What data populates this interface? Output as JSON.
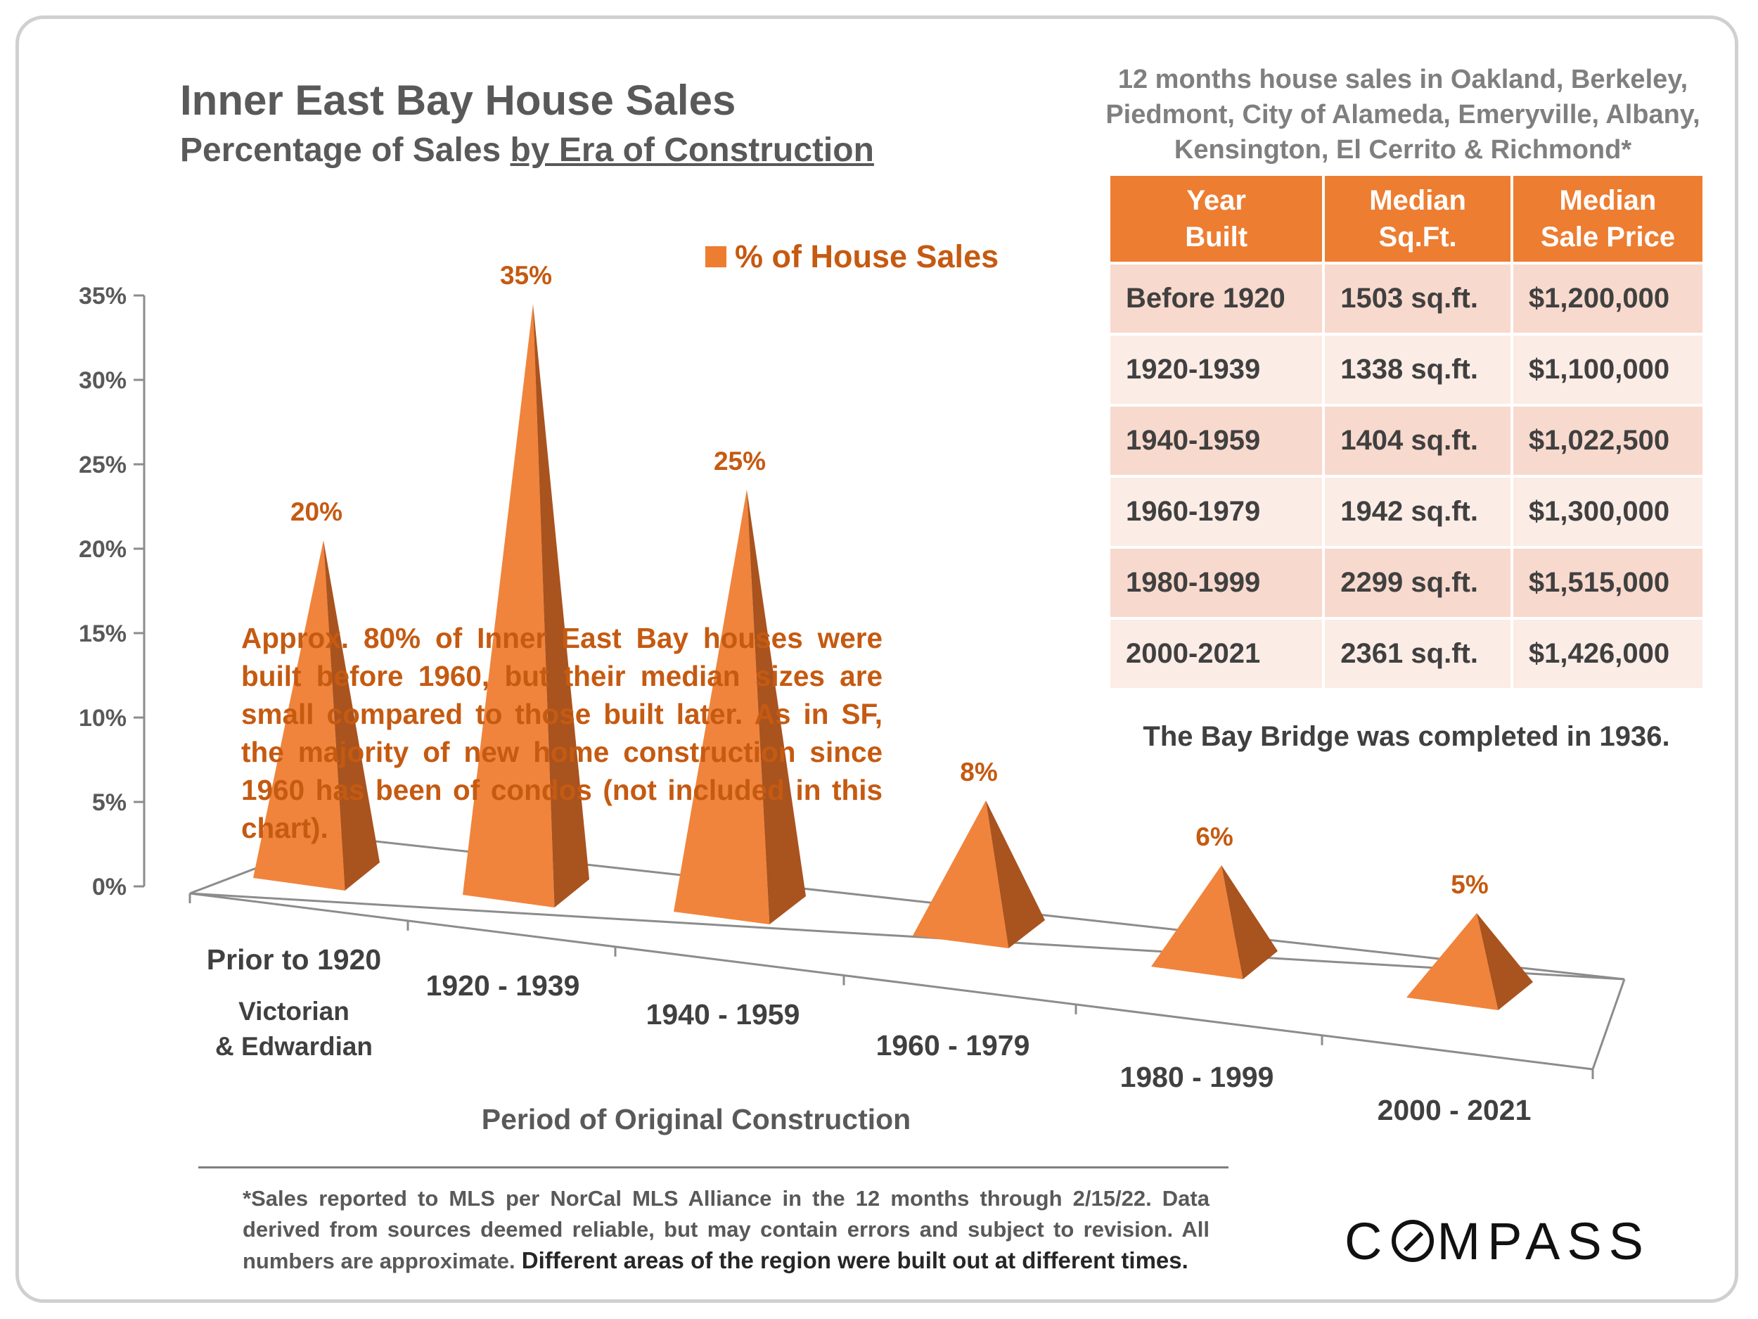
{
  "title": "Inner East Bay House Sales",
  "subtitle_part1": "Percentage of Sales ",
  "subtitle_part2": "by Era of Construction",
  "region_note": "12 months house sales in Oakland, Berkeley, Piedmont, City of Alameda, Emeryville, Albany, Kensington, El Cerrito & Richmond*",
  "table": {
    "headers": [
      [
        "Year",
        "Built"
      ],
      [
        "Median",
        "Sq.Ft."
      ],
      [
        "Median",
        "Sale Price"
      ]
    ],
    "rows": [
      [
        "Before 1920",
        "1503 sq.ft.",
        "$1,200,000"
      ],
      [
        "1920-1939",
        "1338 sq.ft.",
        "$1,100,000"
      ],
      [
        "1940-1959",
        "1404 sq.ft.",
        "$1,022,500"
      ],
      [
        "1960-1979",
        "1942 sq.ft.",
        "$1,300,000"
      ],
      [
        "1980-1999",
        "2299 sq.ft.",
        "$1,515,000"
      ],
      [
        "2000-2021",
        "2361 sq.ft.",
        "$1,426,000"
      ]
    ]
  },
  "bridge_note": "The Bay Bridge was completed in 1936.",
  "annotation": "Approx. 80% of Inner East Bay houses were built before 1960, but their median sizes are small compared to those built later. As in SF, the majority of new home construction since 1960 has been of condos (not included in this chart).",
  "footnote_part1": "*Sales reported to MLS per NorCal MLS Alliance in the 12 months through 2/15/22.  Data derived from sources deemed reliable, but may contain errors and subject to revision. All numbers are approximate.",
  "footnote_part2": " Different areas of the region were built out at different times.",
  "logo_text": "COMPASS",
  "colors": {
    "bar_front": "#f0843c",
    "bar_side": "#a9531f",
    "label": "#c55a11",
    "header": "#ed7d31"
  },
  "chart_data": {
    "type": "bar",
    "style": "3d-pyramid",
    "categories": [
      "Prior to 1920",
      "1920 - 1939",
      "1940 - 1959",
      "1960 - 1979",
      "1980 - 1999",
      "2000 - 2021"
    ],
    "category_sublabel": [
      "Victorian",
      "& Edwardian"
    ],
    "series": [
      {
        "name": "% of House Sales",
        "values": [
          20,
          35,
          25,
          8,
          6,
          5
        ]
      }
    ],
    "data_labels": [
      "20%",
      "35%",
      "25%",
      "8%",
      "6%",
      "5%"
    ],
    "y_ticks": [
      "0%",
      "5%",
      "10%",
      "15%",
      "20%",
      "25%",
      "30%",
      "35%"
    ],
    "ylim": [
      0,
      35
    ],
    "xlabel": "Period of Original Construction",
    "ylabel": "",
    "legend": "top-center"
  }
}
